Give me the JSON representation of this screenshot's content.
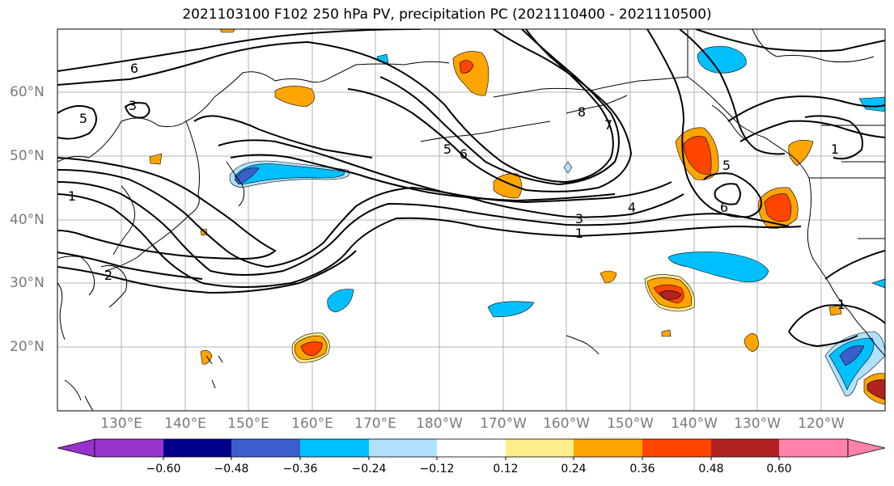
{
  "title": "2021103100 F102 250 hPa PV, precipitation PC (2021110400 - 2021110500)",
  "lat_labels": [
    "60°N",
    "50°N",
    "40°N",
    "30°N",
    "20°N"
  ],
  "lon_labels": [
    "130°E",
    "140°E",
    "150°E",
    "160°E",
    "170°E",
    "180°W",
    "170°W",
    "160°W",
    "150°W",
    "140°W",
    "130°W",
    "120°W"
  ],
  "contour_labels": [
    "6",
    "3",
    "5",
    "1",
    "2",
    "5",
    "6",
    "8",
    "7",
    "3",
    "4",
    "1",
    "5",
    "6",
    "1",
    "1"
  ],
  "colorbar": {
    "ticks": [
      "−0.60",
      "−0.48",
      "−0.36",
      "−0.24",
      "−0.12",
      "0.12",
      "0.24",
      "0.36",
      "0.48",
      "0.60"
    ],
    "colors": [
      "#9932cc",
      "#00008b",
      "#3a5fcd",
      "#00bfff",
      "#b0e2ff",
      "#ffffff",
      "#ffec8b",
      "#ffa500",
      "#ff4500",
      "#b22222",
      "#ff82ab"
    ]
  }
}
